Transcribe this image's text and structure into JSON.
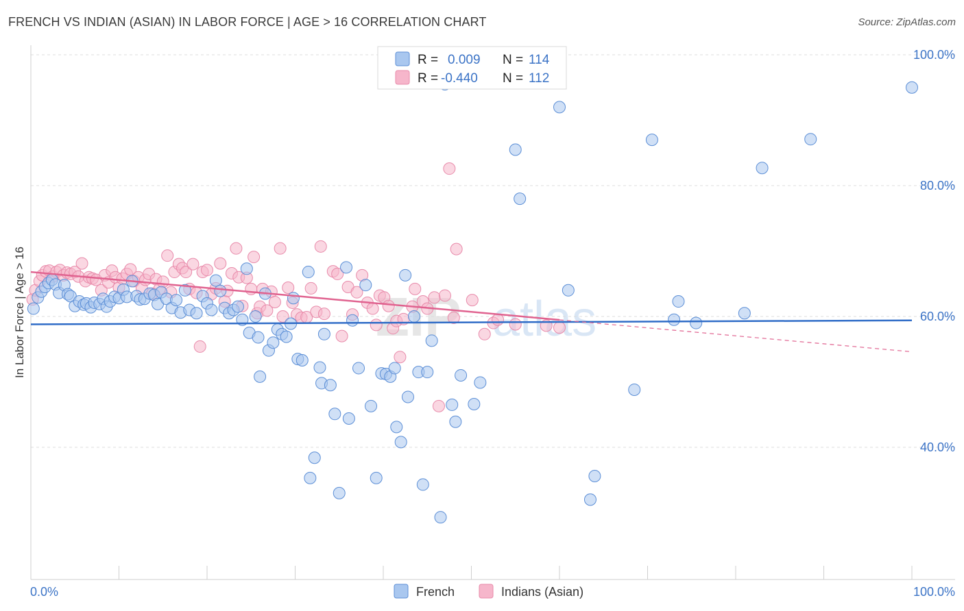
{
  "title": "FRENCH VS INDIAN (ASIAN) IN LABOR FORCE | AGE > 16 CORRELATION CHART",
  "source": "Source: ZipAtlas.com",
  "watermark": {
    "zip": "ZIP",
    "atlas": "atlas"
  },
  "colors": {
    "french": "#a9c7ef",
    "french_stroke": "#5b8ed6",
    "french_line": "#2f6cc7",
    "indians": "#f6b6cb",
    "indians_stroke": "#e88aaa",
    "indians_line": "#e0628f",
    "grid": "#dcdcdc",
    "tick_text": "#3b73c6"
  },
  "legend": {
    "rows": [
      {
        "r_label": "R =",
        "r_value": "0.009",
        "n_label": "N =",
        "n_value": "114",
        "series": "french"
      },
      {
        "r_label": "R =",
        "r_value": "-0.440",
        "n_label": "N =",
        "n_value": "112",
        "series": "indians"
      }
    ]
  },
  "chart_data": {
    "type": "scatter",
    "title": "FRENCH VS INDIAN (ASIAN) IN LABOR FORCE | AGE > 16 CORRELATION CHART",
    "xlabel": "",
    "ylabel": "In Labor Force | Age > 16",
    "xlim": [
      0,
      100
    ],
    "ylim": [
      20,
      100
    ],
    "x_tick_labels": [
      "0.0%",
      "100.0%"
    ],
    "y_ticks": [
      40,
      60,
      80,
      100
    ],
    "y_tick_labels": [
      "40.0%",
      "60.0%",
      "80.0%",
      "100.0%"
    ],
    "grid": true,
    "legend_position": "bottom-center",
    "series": [
      {
        "name": "French",
        "color": "#a9c7ef",
        "trend": {
          "x": [
            0,
            100
          ],
          "y": [
            58.8,
            59.4
          ],
          "dashed_from": null
        },
        "points": [
          [
            0.3,
            61.2
          ],
          [
            0.8,
            62.9
          ],
          [
            1.2,
            63.8
          ],
          [
            1.6,
            64.5
          ],
          [
            2,
            65.1
          ],
          [
            2.4,
            65.6
          ],
          [
            2.8,
            64.9
          ],
          [
            3.2,
            63.6
          ],
          [
            3.8,
            64.8
          ],
          [
            4.2,
            63.4
          ],
          [
            4.5,
            63.1
          ],
          [
            5,
            61.6
          ],
          [
            5.5,
            62.3
          ],
          [
            6,
            61.8
          ],
          [
            6.3,
            62.0
          ],
          [
            6.8,
            61.4
          ],
          [
            7.2,
            62.1
          ],
          [
            7.8,
            61.9
          ],
          [
            8.2,
            62.7
          ],
          [
            8.6,
            61.5
          ],
          [
            9,
            62.3
          ],
          [
            9.5,
            63.0
          ],
          [
            10,
            62.8
          ],
          [
            10.5,
            64.1
          ],
          [
            10.9,
            63.0
          ],
          [
            11.5,
            65.4
          ],
          [
            12,
            63.1
          ],
          [
            12.4,
            62.6
          ],
          [
            12.9,
            62.7
          ],
          [
            13.5,
            63.5
          ],
          [
            14,
            63.3
          ],
          [
            14.4,
            61.9
          ],
          [
            14.8,
            63.7
          ],
          [
            15.4,
            62.7
          ],
          [
            16,
            61.3
          ],
          [
            16.5,
            62.5
          ],
          [
            17,
            60.6
          ],
          [
            17.5,
            64.0
          ],
          [
            18,
            61.0
          ],
          [
            18.8,
            60.5
          ],
          [
            19.5,
            63.1
          ],
          [
            20,
            62.0
          ],
          [
            20.5,
            61.0
          ],
          [
            21,
            65.5
          ],
          [
            21.5,
            63.9
          ],
          [
            22,
            61.3
          ],
          [
            22.5,
            60.5
          ],
          [
            23,
            61.0
          ],
          [
            23.5,
            61.5
          ],
          [
            24,
            59.5
          ],
          [
            24.5,
            67.3
          ],
          [
            24.8,
            57.5
          ],
          [
            25.5,
            60.0
          ],
          [
            25.8,
            56.8
          ],
          [
            26,
            50.8
          ],
          [
            26.6,
            63.5
          ],
          [
            27,
            54.8
          ],
          [
            27.5,
            56.0
          ],
          [
            28,
            58.0
          ],
          [
            28.5,
            57.3
          ],
          [
            29,
            56.9
          ],
          [
            29.5,
            58.9
          ],
          [
            29.8,
            62.8
          ],
          [
            30.3,
            53.5
          ],
          [
            30.8,
            53.3
          ],
          [
            31.5,
            66.8
          ],
          [
            31.7,
            35.3
          ],
          [
            32.2,
            38.4
          ],
          [
            32.8,
            52.2
          ],
          [
            33,
            49.8
          ],
          [
            33.3,
            57.3
          ],
          [
            34,
            49.5
          ],
          [
            34.5,
            45.1
          ],
          [
            35,
            33.0
          ],
          [
            35.8,
            67.5
          ],
          [
            36.1,
            44.4
          ],
          [
            36.5,
            59.4
          ],
          [
            37.2,
            52.1
          ],
          [
            38,
            64.8
          ],
          [
            38.6,
            46.3
          ],
          [
            39.2,
            35.3
          ],
          [
            39.8,
            51.3
          ],
          [
            40.3,
            51.2
          ],
          [
            40.8,
            50.8
          ],
          [
            41.3,
            52.1
          ],
          [
            41.5,
            43.1
          ],
          [
            42,
            40.8
          ],
          [
            42.5,
            66.3
          ],
          [
            42.8,
            47.7
          ],
          [
            43.5,
            60.0
          ],
          [
            44,
            51.5
          ],
          [
            44.5,
            34.3
          ],
          [
            45,
            51.5
          ],
          [
            45.5,
            56.3
          ],
          [
            46.5,
            29.3
          ],
          [
            47,
            95.5
          ],
          [
            47.8,
            46.5
          ],
          [
            48.2,
            43.9
          ],
          [
            48.8,
            51.0
          ],
          [
            50.3,
            46.6
          ],
          [
            51,
            49.9
          ],
          [
            55,
            85.5
          ],
          [
            55.5,
            78.0
          ],
          [
            60,
            92.0
          ],
          [
            61,
            64.0
          ],
          [
            63.5,
            32.0
          ],
          [
            64,
            35.6
          ],
          [
            68.5,
            48.8
          ],
          [
            70.5,
            87.0
          ],
          [
            73,
            59.5
          ],
          [
            73.5,
            62.3
          ],
          [
            75.5,
            59.0
          ],
          [
            81,
            60.5
          ],
          [
            83,
            82.7
          ],
          [
            88.5,
            87.1
          ],
          [
            100,
            95.0
          ]
        ]
      },
      {
        "name": "Indians (Asian)",
        "color": "#f6b6cb",
        "trend": {
          "x": [
            0,
            100
          ],
          "y": [
            66.8,
            54.6
          ],
          "dashed_from": 60
        },
        "points": [
          [
            0.2,
            62.6
          ],
          [
            0.5,
            64.0
          ],
          [
            1,
            65.4
          ],
          [
            1.3,
            66.3
          ],
          [
            1.7,
            66.9
          ],
          [
            2.1,
            67.0
          ],
          [
            2.5,
            66.1
          ],
          [
            2.9,
            66.8
          ],
          [
            3.3,
            67.1
          ],
          [
            3.7,
            66.3
          ],
          [
            4.1,
            66.7
          ],
          [
            4.5,
            66.5
          ],
          [
            5,
            66.8
          ],
          [
            5.4,
            66.1
          ],
          [
            5.8,
            68.1
          ],
          [
            6.2,
            65.4
          ],
          [
            6.6,
            66.0
          ],
          [
            7,
            65.8
          ],
          [
            7.4,
            65.6
          ],
          [
            8,
            64.0
          ],
          [
            8.4,
            66.3
          ],
          [
            8.8,
            65.2
          ],
          [
            9.2,
            67.0
          ],
          [
            9.6,
            66.0
          ],
          [
            10,
            64.4
          ],
          [
            10.4,
            65.8
          ],
          [
            10.9,
            66.5
          ],
          [
            11.3,
            67.2
          ],
          [
            11.7,
            65.4
          ],
          [
            12.2,
            66.0
          ],
          [
            12.6,
            64.3
          ],
          [
            13,
            65.6
          ],
          [
            13.4,
            66.5
          ],
          [
            13.8,
            63.5
          ],
          [
            14.2,
            65.7
          ],
          [
            14.6,
            64.2
          ],
          [
            15,
            65.3
          ],
          [
            15.5,
            69.3
          ],
          [
            15.9,
            63.7
          ],
          [
            16.3,
            66.8
          ],
          [
            16.8,
            68.0
          ],
          [
            17.2,
            67.4
          ],
          [
            17.6,
            66.8
          ],
          [
            18,
            64.2
          ],
          [
            18.4,
            68.0
          ],
          [
            18.8,
            63.6
          ],
          [
            19.2,
            55.4
          ],
          [
            19.5,
            66.8
          ],
          [
            20,
            67.1
          ],
          [
            20.5,
            63.4
          ],
          [
            21,
            64.3
          ],
          [
            21.5,
            68.1
          ],
          [
            22,
            62.3
          ],
          [
            22.3,
            63.9
          ],
          [
            22.8,
            66.6
          ],
          [
            23.3,
            70.4
          ],
          [
            23.6,
            66.0
          ],
          [
            24,
            61.6
          ],
          [
            24.5,
            65.9
          ],
          [
            25,
            64.2
          ],
          [
            25.3,
            69.1
          ],
          [
            25.7,
            60.5
          ],
          [
            26,
            61.5
          ],
          [
            26.3,
            64.2
          ],
          [
            26.8,
            60.9
          ],
          [
            27.3,
            63.8
          ],
          [
            27.7,
            62.2
          ],
          [
            28.3,
            70.4
          ],
          [
            28.6,
            60.0
          ],
          [
            29.2,
            64.4
          ],
          [
            29.7,
            62.1
          ],
          [
            30.2,
            60.3
          ],
          [
            30.7,
            59.8
          ],
          [
            31.3,
            59.9
          ],
          [
            31.8,
            64.3
          ],
          [
            32.4,
            60.7
          ],
          [
            32.9,
            70.7
          ],
          [
            33.3,
            60.4
          ],
          [
            34.3,
            66.9
          ],
          [
            34.8,
            66.5
          ],
          [
            35.3,
            57.0
          ],
          [
            36,
            64.5
          ],
          [
            36.5,
            60.3
          ],
          [
            37,
            63.7
          ],
          [
            37.6,
            66.3
          ],
          [
            38.2,
            62.1
          ],
          [
            38.8,
            61.2
          ],
          [
            39.2,
            58.7
          ],
          [
            39.6,
            63.2
          ],
          [
            40.1,
            62.9
          ],
          [
            40.6,
            61.6
          ],
          [
            41.1,
            58.2
          ],
          [
            41.5,
            59.3
          ],
          [
            41.9,
            53.8
          ],
          [
            42.3,
            59.6
          ],
          [
            43.3,
            61.5
          ],
          [
            43.6,
            64.2
          ],
          [
            44.5,
            62.3
          ],
          [
            45,
            61.2
          ],
          [
            45.8,
            62.9
          ],
          [
            46.3,
            46.3
          ],
          [
            47,
            63.2
          ],
          [
            47.5,
            82.6
          ],
          [
            48,
            59.8
          ],
          [
            48.3,
            70.3
          ],
          [
            50.1,
            62.5
          ],
          [
            51.5,
            57.3
          ],
          [
            52.5,
            59.0
          ],
          [
            53,
            59.5
          ],
          [
            55,
            58.8
          ],
          [
            58.5,
            58.6
          ],
          [
            60,
            58.3
          ]
        ]
      }
    ]
  },
  "bottom_legend": [
    {
      "label": "French",
      "series": "french"
    },
    {
      "label": "Indians (Asian)",
      "series": "indians"
    }
  ]
}
